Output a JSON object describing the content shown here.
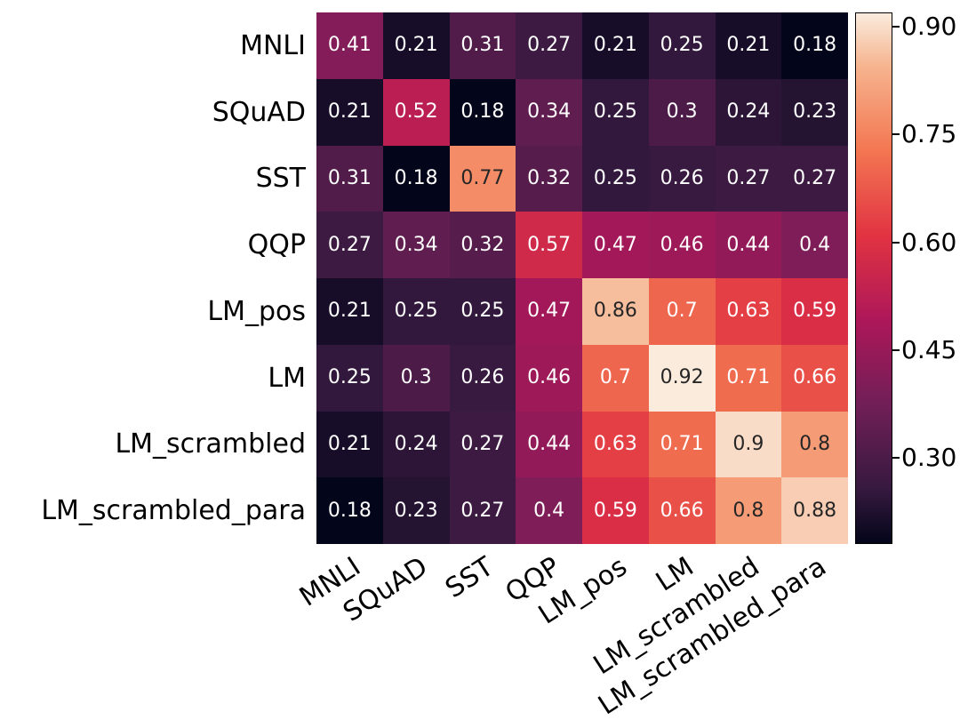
{
  "figure": {
    "background": "#ffffff"
  },
  "chart_data": {
    "type": "heatmap",
    "title": "",
    "categories": [
      "MNLI",
      "SQuAD",
      "SST",
      "QQP",
      "LM_pos",
      "LM",
      "LM_scrambled",
      "LM_scrambled_para"
    ],
    "matrix": [
      [
        0.41,
        0.21,
        0.31,
        0.27,
        0.21,
        0.25,
        0.21,
        0.18
      ],
      [
        0.21,
        0.52,
        0.18,
        0.34,
        0.25,
        0.3,
        0.24,
        0.23
      ],
      [
        0.31,
        0.18,
        0.77,
        0.32,
        0.25,
        0.26,
        0.27,
        0.27
      ],
      [
        0.27,
        0.34,
        0.32,
        0.57,
        0.47,
        0.46,
        0.44,
        0.4
      ],
      [
        0.21,
        0.25,
        0.25,
        0.47,
        0.86,
        0.7,
        0.63,
        0.59
      ],
      [
        0.25,
        0.3,
        0.26,
        0.46,
        0.7,
        0.92,
        0.71,
        0.66
      ],
      [
        0.21,
        0.24,
        0.27,
        0.44,
        0.63,
        0.71,
        0.9,
        0.8
      ],
      [
        0.18,
        0.23,
        0.27,
        0.4,
        0.59,
        0.66,
        0.8,
        0.88
      ]
    ],
    "vmin": 0.18,
    "vmax": 0.92,
    "annotations": true,
    "colormap": "rocket",
    "colormap_stops": [
      [
        0.0,
        [
          3,
          5,
          26
        ]
      ],
      [
        0.1,
        [
          53,
          25,
          62
        ]
      ],
      [
        0.26,
        [
          112,
          31,
          87
        ]
      ],
      [
        0.42,
        [
          173,
          23,
          89
        ]
      ],
      [
        0.58,
        [
          225,
          51,
          66
        ]
      ],
      [
        0.74,
        [
          243,
          118,
          81
        ]
      ],
      [
        0.9,
        [
          246,
          180,
          143
        ]
      ],
      [
        1.0,
        [
          250,
          235,
          221
        ]
      ]
    ],
    "annotation_dark_color": "#262626",
    "annotation_light_color": "#ffffff",
    "colorbar": {
      "ticks": [
        0.9,
        0.75,
        0.6,
        0.45,
        0.3
      ],
      "tick_labels": [
        "0.90",
        "0.75",
        "0.60",
        "0.45",
        "0.30"
      ],
      "position": "right"
    },
    "legend": false,
    "grid": false,
    "xlabel": "",
    "ylabel": ""
  }
}
